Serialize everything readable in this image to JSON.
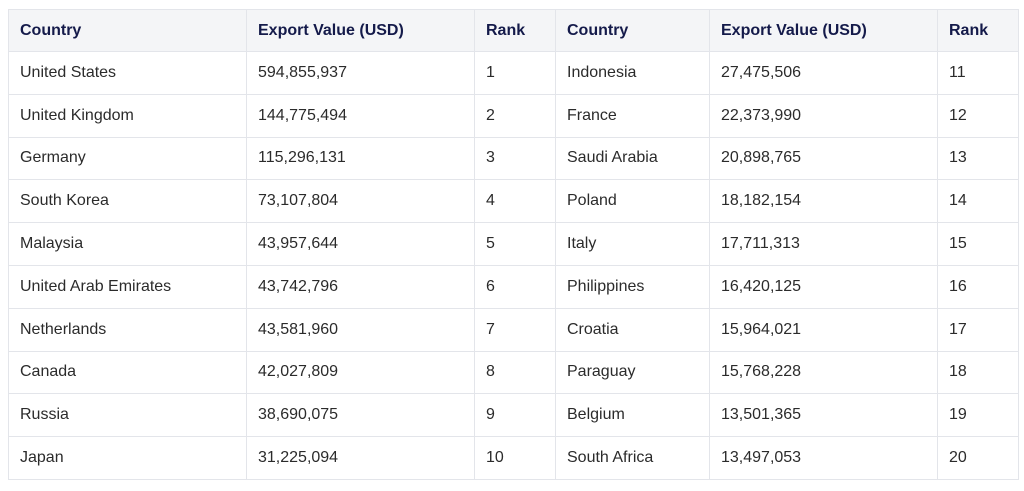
{
  "headers": [
    "Country",
    "Export Value (USD)",
    "Rank",
    "Country",
    "Export Value (USD)",
    "Rank"
  ],
  "rows": [
    {
      "country_a": "United States",
      "value_a": "594,855,937",
      "rank_a": "1",
      "country_b": "Indonesia",
      "value_b": "27,475,506",
      "rank_b": "11"
    },
    {
      "country_a": "United Kingdom",
      "value_a": "144,775,494",
      "rank_a": "2",
      "country_b": "France",
      "value_b": "22,373,990",
      "rank_b": "12"
    },
    {
      "country_a": "Germany",
      "value_a": "115,296,131",
      "rank_a": "3",
      "country_b": "Saudi Arabia",
      "value_b": "20,898,765",
      "rank_b": "13"
    },
    {
      "country_a": "South Korea",
      "value_a": "73,107,804",
      "rank_a": "4",
      "country_b": "Poland",
      "value_b": "18,182,154",
      "rank_b": "14"
    },
    {
      "country_a": "Malaysia",
      "value_a": "43,957,644",
      "rank_a": "5",
      "country_b": "Italy",
      "value_b": "17,711,313",
      "rank_b": "15"
    },
    {
      "country_a": "United Arab Emirates",
      "value_a": "43,742,796",
      "rank_a": "6",
      "country_b": "Philippines",
      "value_b": "16,420,125",
      "rank_b": "16"
    },
    {
      "country_a": "Netherlands",
      "value_a": "43,581,960",
      "rank_a": "7",
      "country_b": "Croatia",
      "value_b": "15,964,021",
      "rank_b": "17"
    },
    {
      "country_a": "Canada",
      "value_a": "42,027,809",
      "rank_a": "8",
      "country_b": "Paraguay",
      "value_b": "15,768,228",
      "rank_b": "18"
    },
    {
      "country_a": "Russia",
      "value_a": "38,690,075",
      "rank_a": "9",
      "country_b": "Belgium",
      "value_b": "13,501,365",
      "rank_b": "19"
    },
    {
      "country_a": "Japan",
      "value_a": "31,225,094",
      "rank_a": "10",
      "country_b": "South Africa",
      "value_b": "13,497,053",
      "rank_b": "20"
    }
  ]
}
